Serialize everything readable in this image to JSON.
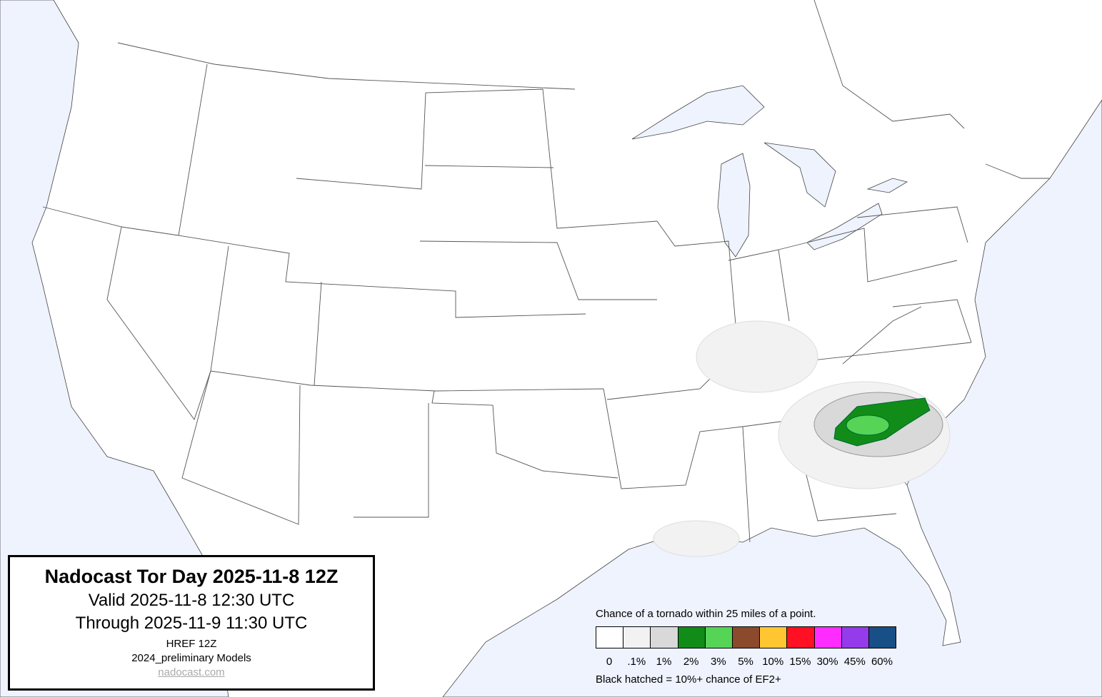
{
  "title_box": {
    "title": "Nadocast Tor Day 2025-11-8 12Z",
    "valid": "Valid 2025-11-8 12:30 UTC",
    "through": "Through 2025-11-9 11:30 UTC",
    "model": "HREF 12Z",
    "models": "2024_preliminary Models",
    "link": "nadocast.com"
  },
  "legend": {
    "heading": "Chance of a tornado within 25 miles of a point.",
    "bins": [
      {
        "label": "0",
        "color": "#ffffff"
      },
      {
        "label": ".1%",
        "color": "#f2f2f2"
      },
      {
        "label": "1%",
        "color": "#d9d9d9"
      },
      {
        "label": "2%",
        "color": "#118c18"
      },
      {
        "label": "3%",
        "color": "#56d456"
      },
      {
        "label": "5%",
        "color": "#8b4a2b"
      },
      {
        "label": "10%",
        "color": "#ffc631"
      },
      {
        "label": "15%",
        "color": "#ff1022"
      },
      {
        "label": "30%",
        "color": "#ff2cff"
      },
      {
        "label": "45%",
        "color": "#943bec"
      },
      {
        "label": "60%",
        "color": "#174f86"
      }
    ],
    "footnote": "Black hatched = 10%+ chance of EF2+"
  },
  "colors": {
    "water": "#eef3fe",
    "land": "#ffffff",
    "border": "#555555"
  }
}
